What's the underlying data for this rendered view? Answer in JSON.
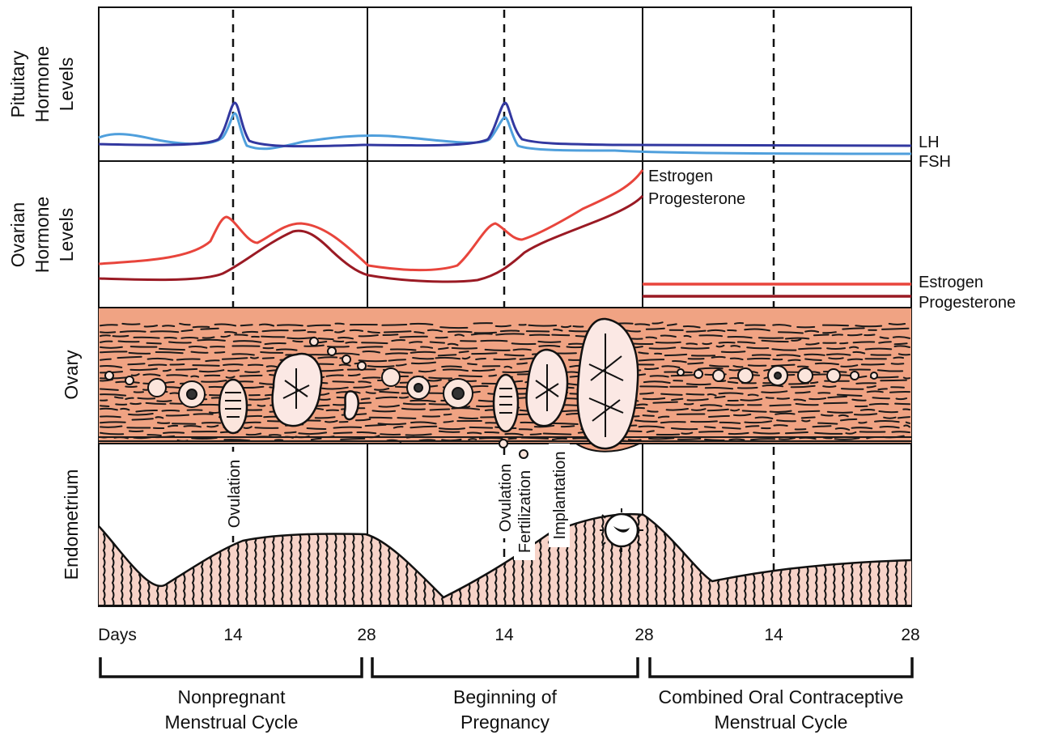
{
  "sections": {
    "pituitary": [
      "Pituitary",
      "Hormone",
      "Levels"
    ],
    "ovarian": [
      "Ovarian",
      "Hormone",
      "Levels"
    ],
    "ovary": "Ovary",
    "endometrium": "Endometrium"
  },
  "curve_labels": {
    "lh": "LH",
    "fsh": "FSH",
    "estrogen_rising": "Estrogen",
    "progesterone_rising": "Progesterone",
    "estrogen_flat": "Estrogen",
    "progesterone_flat": "Progesterone"
  },
  "events": {
    "ovulation_1": "Ovulation",
    "ovulation_2": "Ovulation",
    "fertilization": "Fertilization",
    "implantation": "Implantation"
  },
  "days": [
    "Days",
    "14",
    "28",
    "14",
    "28",
    "14",
    "28"
  ],
  "phases": [
    [
      "Nonpregnant",
      "Menstrual Cycle"
    ],
    [
      "Beginning of",
      "Pregnancy"
    ],
    [
      "Combined Oral Contraceptive",
      "Menstrual Cycle"
    ]
  ],
  "colors": {
    "lh": "#3238a0",
    "fsh": "#4f9fdc",
    "estrogen": "#e8453c",
    "progesterone": "#9a1a24",
    "ovary_tissue": "#f0a383",
    "endometrium_fill": "#f7d3c8"
  }
}
